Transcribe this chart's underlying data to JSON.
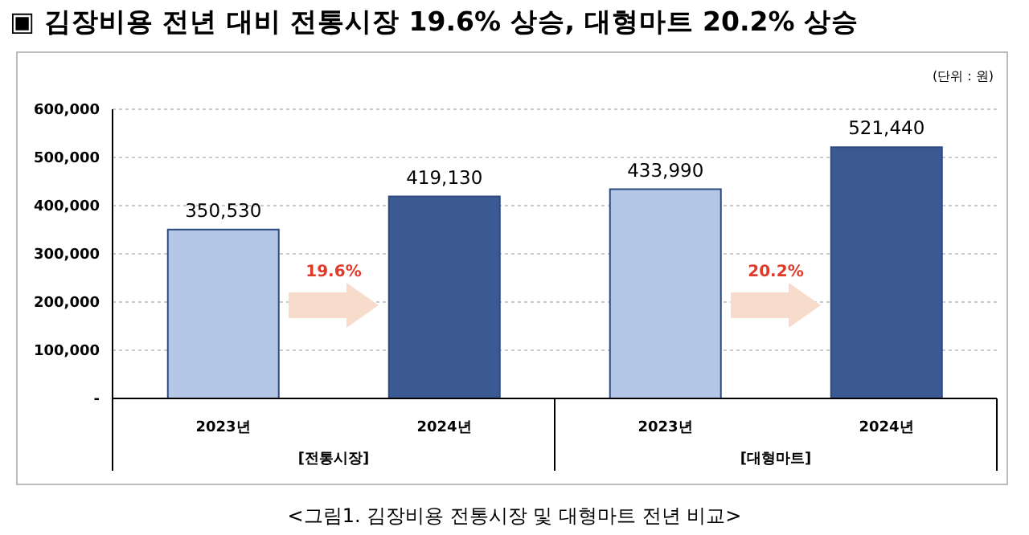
{
  "chart_data": {
    "type": "bar",
    "title": "▣ 김장비용 전년 대비 전통시장 19.6% 상승, 대형마트 20.2% 상승",
    "categories": [
      "2023년",
      "2024년",
      "2023년",
      "2024년"
    ],
    "values": [
      350530,
      419130,
      433990,
      521440
    ],
    "colors": [
      "#b4c7e7",
      "#3b5a94",
      "#b4c7e7",
      "#3b5a94"
    ],
    "value_labels": [
      "350,530",
      "419,130",
      "433,990",
      "521,440"
    ],
    "ylim": [
      0,
      600000
    ],
    "yticks": [
      {
        "value": 0,
        "label": "-"
      },
      {
        "value": 100000,
        "label": "100,000"
      },
      {
        "value": 200000,
        "label": "200,000"
      },
      {
        "value": 300000,
        "label": "300,000"
      },
      {
        "value": 400000,
        "label": "400,000"
      },
      {
        "value": 500000,
        "label": "500,000"
      },
      {
        "value": 600000,
        "label": "600,000"
      }
    ],
    "grid": "y",
    "annotations": [
      "(단위 : 원)",
      "19.6%",
      "20.2%",
      "[전통시장]",
      "[대형마트]",
      "<그림1. 김장비용 전통시장 및 대형마트 전년 비교>"
    ]
  }
}
